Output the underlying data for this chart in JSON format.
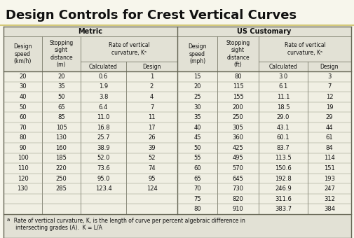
{
  "title": "Design Controls for Crest Vertical Curves",
  "metric_header": "Metric",
  "us_header": "US Customary",
  "subheader_rate": "Rate of vertical\ncurvature, Kᵃ",
  "metric_data": [
    [
      20,
      20,
      "0.6",
      1
    ],
    [
      30,
      35,
      "1.9",
      2
    ],
    [
      40,
      50,
      "3.8",
      4
    ],
    [
      50,
      65,
      "6.4",
      7
    ],
    [
      60,
      85,
      "11.0",
      11
    ],
    [
      70,
      105,
      "16.8",
      17
    ],
    [
      80,
      130,
      "25.7",
      26
    ],
    [
      90,
      160,
      "38.9",
      39
    ],
    [
      100,
      185,
      "52.0",
      52
    ],
    [
      110,
      220,
      "73.6",
      74
    ],
    [
      120,
      250,
      "95.0",
      95
    ],
    [
      130,
      285,
      "123.4",
      124
    ]
  ],
  "us_data": [
    [
      15,
      80,
      "3.0",
      3
    ],
    [
      20,
      115,
      "6.1",
      7
    ],
    [
      25,
      155,
      "11.1",
      12
    ],
    [
      30,
      200,
      "18.5",
      19
    ],
    [
      35,
      250,
      "29.0",
      29
    ],
    [
      40,
      305,
      "43.1",
      44
    ],
    [
      45,
      360,
      "60.1",
      61
    ],
    [
      50,
      425,
      "83.7",
      84
    ],
    [
      55,
      495,
      "113.5",
      114
    ],
    [
      60,
      570,
      "150.6",
      151
    ],
    [
      65,
      645,
      "192.8",
      193
    ],
    [
      70,
      730,
      "246.9",
      247
    ],
    [
      75,
      820,
      "311.6",
      312
    ],
    [
      80,
      910,
      "383.7",
      384
    ]
  ],
  "footnote_super": "a",
  "footnote_text": "  Rate of vertical curvature, K, is the length of curve per percent algebraic difference in\n   intersecting grades (A).  K = L/A",
  "bg_color": "#f7f6ec",
  "table_bg": "#f0efe3",
  "header_bg": "#e2e1d5",
  "border_color": "#666655",
  "text_color": "#111111",
  "title_color": "#111111"
}
